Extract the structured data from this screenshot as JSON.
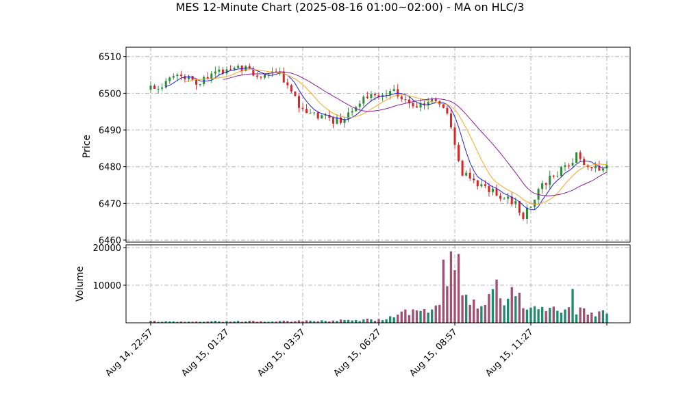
{
  "chart_data": {
    "type": "candlestick",
    "title": "MES 12-Minute Chart (2025-08-16 01:00~02:00) - MA on HLC/3",
    "price_panel": {
      "ylabel": "Price",
      "yticks": [
        6460,
        6470,
        6480,
        6490,
        6500,
        6510
      ],
      "ylim": [
        6460,
        6512
      ],
      "grid": true
    },
    "volume_panel": {
      "ylabel": "Volume",
      "yticks": [
        10000,
        20000
      ],
      "ylim": [
        0,
        20000
      ],
      "grid": true
    },
    "x_ticks": [
      {
        "index": 0,
        "label": "Aug 14, 22:57"
      },
      {
        "index": 20,
        "label": "Aug 15, 01:27"
      },
      {
        "index": 40,
        "label": "Aug 15, 03:57"
      },
      {
        "index": 60,
        "label": "Aug 15, 06:27"
      },
      {
        "index": 80,
        "label": "Aug 15, 08:57"
      },
      {
        "index": 100,
        "label": "Aug 15, 11:27"
      },
      {
        "index": 120,
        "label": ""
      }
    ],
    "bar_count": 121,
    "candle_colors": {
      "up": "#2e8b3a",
      "down": "#d62728"
    },
    "volume_colors": {
      "up": "#1f8a70",
      "down": "#a05070"
    },
    "ma_series": [
      {
        "color": "#1f1fe0",
        "period": 5
      },
      {
        "color": "#f5a623",
        "period": 10
      },
      {
        "color": "#8b1a9b",
        "period": 20
      }
    ],
    "price_path": [
      [
        0,
        6501
      ],
      [
        4,
        6503
      ],
      [
        8,
        6505
      ],
      [
        12,
        6503
      ],
      [
        16,
        6505
      ],
      [
        20,
        6506
      ],
      [
        24,
        6507
      ],
      [
        28,
        6505
      ],
      [
        33,
        6506
      ],
      [
        36,
        6503
      ],
      [
        40,
        6495
      ],
      [
        44,
        6494
      ],
      [
        48,
        6492
      ],
      [
        52,
        6494
      ],
      [
        56,
        6498
      ],
      [
        60,
        6500
      ],
      [
        64,
        6501
      ],
      [
        68,
        6497
      ],
      [
        72,
        6497
      ],
      [
        76,
        6498
      ],
      [
        78,
        6494
      ],
      [
        80,
        6486
      ],
      [
        82,
        6478
      ],
      [
        86,
        6475
      ],
      [
        90,
        6473
      ],
      [
        94,
        6471
      ],
      [
        96,
        6470
      ],
      [
        98,
        6466
      ],
      [
        100,
        6470
      ],
      [
        104,
        6476
      ],
      [
        108,
        6479
      ],
      [
        112,
        6483
      ],
      [
        116,
        6480
      ],
      [
        118,
        6479
      ],
      [
        120,
        6481
      ]
    ],
    "volume_path": [
      [
        0,
        400
      ],
      [
        30,
        400
      ],
      [
        40,
        500
      ],
      [
        55,
        700
      ],
      [
        62,
        1000
      ],
      [
        65,
        2800
      ],
      [
        70,
        2500
      ],
      [
        76,
        4500
      ],
      [
        78,
        9000
      ],
      [
        80,
        12000
      ],
      [
        82,
        7000
      ],
      [
        85,
        5000
      ],
      [
        88,
        6500
      ],
      [
        92,
        7500
      ],
      [
        95,
        5500
      ],
      [
        100,
        3500
      ],
      [
        105,
        3000
      ],
      [
        110,
        3500
      ],
      [
        115,
        3000
      ],
      [
        120,
        2500
      ]
    ],
    "volume_spikes": [
      {
        "index": 77,
        "value": 16800
      },
      {
        "index": 79,
        "value": 19000
      },
      {
        "index": 80,
        "value": 14000
      },
      {
        "index": 81,
        "value": 18300
      },
      {
        "index": 91,
        "value": 11500
      },
      {
        "index": 95,
        "value": 9500
      },
      {
        "index": 111,
        "value": 9000
      },
      {
        "index": 97,
        "value": 8000
      }
    ]
  }
}
